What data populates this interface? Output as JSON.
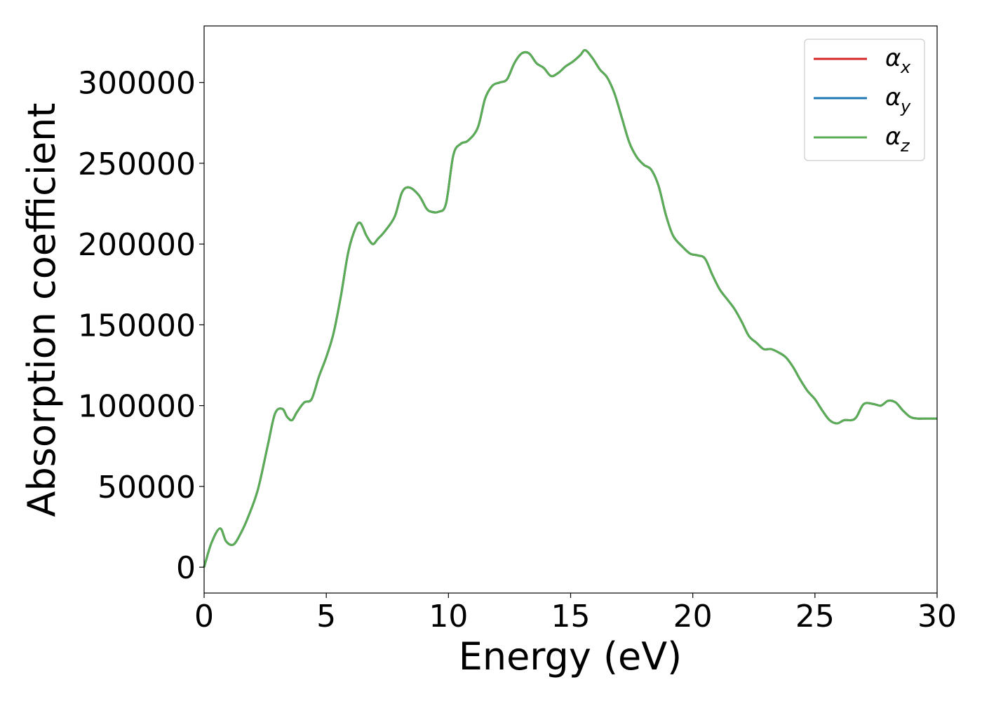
{
  "chart_data": {
    "type": "line",
    "title": "",
    "xlabel": "Energy (eV)",
    "ylabel": "Absorption coefficient",
    "xlim": [
      0,
      30
    ],
    "ylim": [
      -16000,
      335000
    ],
    "xticks": [
      0,
      5,
      10,
      15,
      20,
      25,
      30
    ],
    "xtick_labels": [
      "0",
      "5",
      "10",
      "15",
      "20",
      "25",
      "30"
    ],
    "yticks": [
      0,
      50000,
      100000,
      150000,
      200000,
      250000,
      300000
    ],
    "ytick_labels": [
      "0",
      "50000",
      "100000",
      "150000",
      "200000",
      "250000",
      "300000"
    ],
    "grid": false,
    "legend_position": "top-right",
    "x": [
      0,
      0.3,
      0.65,
      0.9,
      1.2,
      1.5,
      1.8,
      2.2,
      2.6,
      2.9,
      3.2,
      3.4,
      3.6,
      3.8,
      4.1,
      4.4,
      4.7,
      5.0,
      5.3,
      5.6,
      5.9,
      6.2,
      6.4,
      6.65,
      6.9,
      7.1,
      7.4,
      7.8,
      8.1,
      8.4,
      8.8,
      9.1,
      9.3,
      9.6,
      9.9,
      10.2,
      10.5,
      10.8,
      11.2,
      11.5,
      11.8,
      12.1,
      12.4,
      12.7,
      13.0,
      13.3,
      13.6,
      13.9,
      14.2,
      14.5,
      14.8,
      15.1,
      15.4,
      15.6,
      15.9,
      16.2,
      16.5,
      16.8,
      17.1,
      17.4,
      17.7,
      18.0,
      18.3,
      18.6,
      18.9,
      19.2,
      19.6,
      19.9,
      20.2,
      20.5,
      20.8,
      21.1,
      21.4,
      21.7,
      22.0,
      22.3,
      22.6,
      22.9,
      23.2,
      23.5,
      23.8,
      24.1,
      24.4,
      24.7,
      25.0,
      25.3,
      25.6,
      25.9,
      26.2,
      26.5,
      26.7,
      27.0,
      27.4,
      27.7,
      28.0,
      28.3,
      28.6,
      28.9,
      29.2,
      29.5,
      29.8,
      30.0
    ],
    "series": [
      {
        "name": "αx",
        "color": "#d62728",
        "y": [
          0,
          15000,
          24000,
          16000,
          14000,
          21000,
          31000,
          48000,
          75000,
          95000,
          98000,
          93000,
          91000,
          96000,
          102000,
          104000,
          118000,
          130000,
          145000,
          168000,
          195000,
          210000,
          213000,
          205000,
          200000,
          203000,
          208000,
          217000,
          232000,
          235000,
          230000,
          222000,
          220000,
          220000,
          225000,
          255000,
          262000,
          264000,
          272000,
          290000,
          298000,
          300000,
          302000,
          312000,
          318000,
          318000,
          312000,
          309000,
          304000,
          306000,
          310000,
          313000,
          317000,
          320000,
          315000,
          308000,
          303000,
          293000,
          278000,
          263000,
          254000,
          249000,
          246000,
          236000,
          218000,
          205000,
          198000,
          194000,
          193000,
          191000,
          181000,
          172000,
          166000,
          160000,
          152000,
          143000,
          139000,
          135000,
          135000,
          133000,
          130000,
          124000,
          116000,
          109000,
          104000,
          97000,
          91000,
          89000,
          91000,
          91000,
          93000,
          101000,
          101000,
          100000,
          103000,
          102000,
          97000,
          93000,
          92000,
          92000,
          92000,
          92000
        ]
      },
      {
        "name": "αy",
        "color": "#1f77b4",
        "y": [
          0,
          15000,
          24000,
          16000,
          14000,
          21000,
          31000,
          48000,
          75000,
          95000,
          98000,
          93000,
          91000,
          96000,
          102000,
          104000,
          118000,
          130000,
          145000,
          168000,
          195000,
          210000,
          213000,
          205000,
          200000,
          203000,
          208000,
          217000,
          232000,
          235000,
          230000,
          222000,
          220000,
          220000,
          225000,
          255000,
          262000,
          264000,
          272000,
          290000,
          298000,
          300000,
          302000,
          312000,
          318000,
          318000,
          312000,
          309000,
          304000,
          306000,
          310000,
          313000,
          317000,
          320000,
          315000,
          308000,
          303000,
          293000,
          278000,
          263000,
          254000,
          249000,
          246000,
          236000,
          218000,
          205000,
          198000,
          194000,
          193000,
          191000,
          181000,
          172000,
          166000,
          160000,
          152000,
          143000,
          139000,
          135000,
          135000,
          133000,
          130000,
          124000,
          116000,
          109000,
          104000,
          97000,
          91000,
          89000,
          91000,
          91000,
          93000,
          101000,
          101000,
          100000,
          103000,
          102000,
          97000,
          93000,
          92000,
          92000,
          92000,
          92000
        ]
      },
      {
        "name": "αz",
        "color": "#5aad54",
        "y": [
          0,
          15000,
          24000,
          16000,
          14000,
          21000,
          31000,
          48000,
          75000,
          95000,
          98000,
          93000,
          91000,
          96000,
          102000,
          104000,
          118000,
          130000,
          145000,
          168000,
          195000,
          210000,
          213000,
          205000,
          200000,
          203000,
          208000,
          217000,
          232000,
          235000,
          230000,
          222000,
          220000,
          220000,
          225000,
          255000,
          262000,
          264000,
          272000,
          290000,
          298000,
          300000,
          302000,
          312000,
          318000,
          318000,
          312000,
          309000,
          304000,
          306000,
          310000,
          313000,
          317000,
          320000,
          315000,
          308000,
          303000,
          293000,
          278000,
          263000,
          254000,
          249000,
          246000,
          236000,
          218000,
          205000,
          198000,
          194000,
          193000,
          191000,
          181000,
          172000,
          166000,
          160000,
          152000,
          143000,
          139000,
          135000,
          135000,
          133000,
          130000,
          124000,
          116000,
          109000,
          104000,
          97000,
          91000,
          89000,
          91000,
          91000,
          93000,
          101000,
          101000,
          100000,
          103000,
          102000,
          97000,
          93000,
          92000,
          92000,
          92000,
          92000
        ]
      }
    ],
    "legend": [
      {
        "symbol": "α",
        "sub": "x",
        "color": "#d62728"
      },
      {
        "symbol": "α",
        "sub": "y",
        "color": "#1f77b4"
      },
      {
        "symbol": "α",
        "sub": "z",
        "color": "#5aad54"
      }
    ]
  }
}
